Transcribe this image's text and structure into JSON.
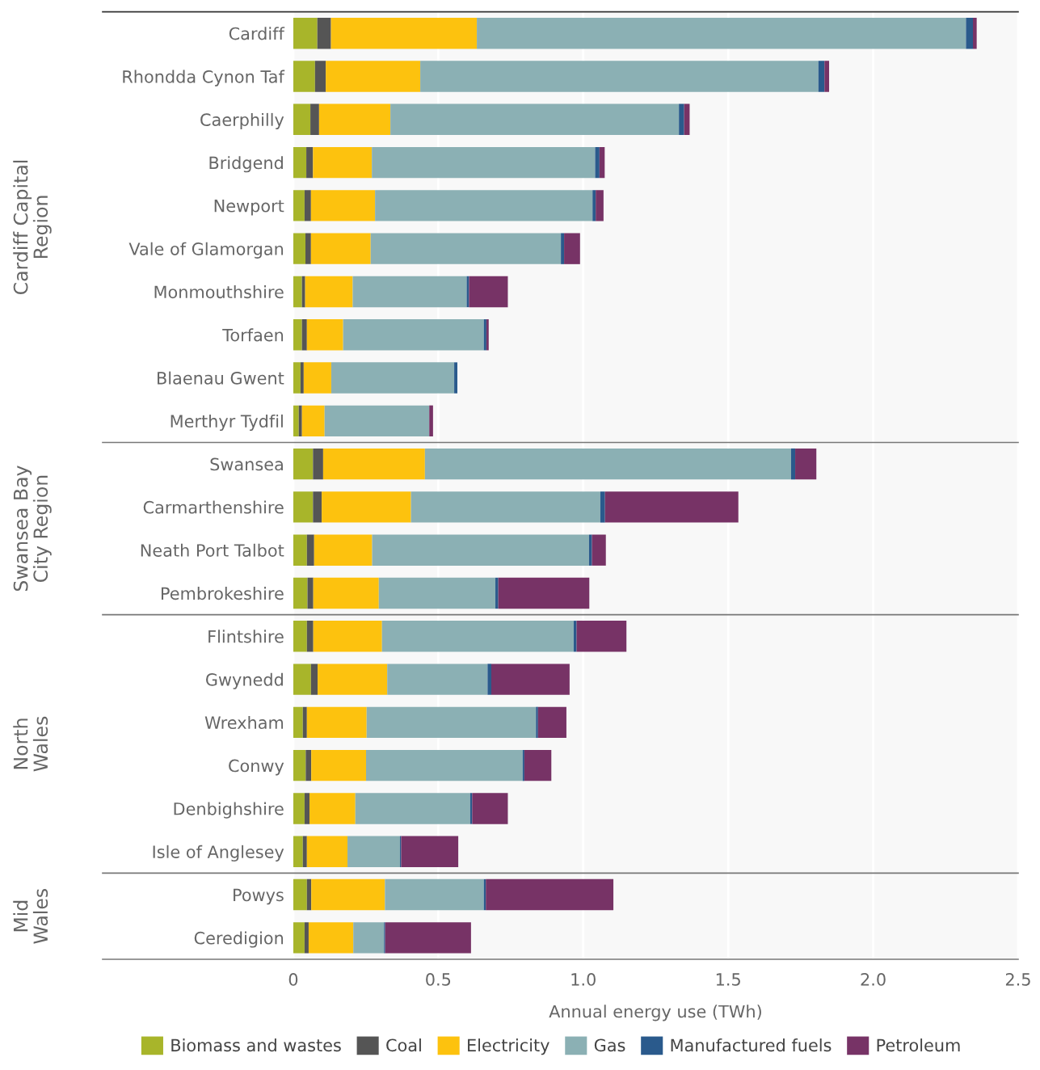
{
  "chart_data": {
    "type": "bar",
    "orientation": "horizontal",
    "stacked": true,
    "xlabel": "Annual energy use (TWh)",
    "categories": [
      "Cardiff",
      "Rhondda Cynon Taf",
      "Caerphilly",
      "Bridgend",
      "Newport",
      "Vale of Glamorgan",
      "Monmouthshire",
      "Torfaen",
      "Blaenau Gwent",
      "Merthyr Tydfil",
      "Swansea",
      "Carmarthenshire",
      "Neath Port Talbot",
      "Pembrokeshire",
      "Flintshire",
      "Gwynedd",
      "Wrexham",
      "Conwy",
      "Denbighshire",
      "Isle of Anglesey",
      "Powys",
      "Ceredigion"
    ],
    "series": [
      {
        "name": "Biomass and wastes",
        "color": "#a8b52a",
        "values": [
          0.083,
          0.075,
          0.059,
          0.045,
          0.039,
          0.042,
          0.03,
          0.03,
          0.025,
          0.019,
          0.068,
          0.068,
          0.047,
          0.049,
          0.047,
          0.061,
          0.033,
          0.043,
          0.039,
          0.033,
          0.047,
          0.039
        ]
      },
      {
        "name": "Coal",
        "color": "#555555",
        "values": [
          0.047,
          0.037,
          0.03,
          0.023,
          0.022,
          0.019,
          0.011,
          0.017,
          0.011,
          0.011,
          0.035,
          0.03,
          0.025,
          0.02,
          0.022,
          0.023,
          0.014,
          0.019,
          0.017,
          0.014,
          0.015,
          0.014
        ]
      },
      {
        "name": "Electricity",
        "color": "#fdc20e",
        "values": [
          0.503,
          0.326,
          0.246,
          0.203,
          0.221,
          0.206,
          0.164,
          0.125,
          0.095,
          0.078,
          0.351,
          0.308,
          0.2,
          0.226,
          0.237,
          0.24,
          0.206,
          0.189,
          0.158,
          0.14,
          0.254,
          0.154
        ]
      },
      {
        "name": "Gas",
        "color": "#8bb0b4",
        "values": [
          1.687,
          1.373,
          0.995,
          0.77,
          0.75,
          0.656,
          0.393,
          0.485,
          0.424,
          0.361,
          1.263,
          0.653,
          0.748,
          0.402,
          0.661,
          0.346,
          0.584,
          0.54,
          0.396,
          0.181,
          0.341,
          0.106
        ]
      },
      {
        "name": "Manufactured fuels",
        "color": "#2a5a8c",
        "values": [
          0.024,
          0.021,
          0.018,
          0.015,
          0.011,
          0.011,
          0.008,
          0.009,
          0.011,
          0,
          0.014,
          0.016,
          0.01,
          0.01,
          0.01,
          0.013,
          0.007,
          0.006,
          0.007,
          0.004,
          0.007,
          0.004
        ]
      },
      {
        "name": "Petroleum",
        "color": "#773366",
        "values": [
          0.013,
          0.016,
          0.019,
          0.018,
          0.027,
          0.055,
          0.134,
          0.008,
          0,
          0.013,
          0.073,
          0.46,
          0.048,
          0.314,
          0.172,
          0.27,
          0.098,
          0.093,
          0.123,
          0.197,
          0.44,
          0.296
        ]
      }
    ],
    "xlim": [
      0,
      2.5
    ],
    "xticks": [
      0,
      0.5,
      {
        "value": 1,
        "label": "1.0"
      },
      1.5,
      {
        "value": 2,
        "label": "2.0"
      },
      2.5
    ],
    "grid": "x",
    "legend": "bottom",
    "annotations": [
      "Cardiff Capital\nRegion",
      "Swansea Bay\nCity Region",
      "North\nWales",
      "Mid\nWales"
    ]
  }
}
